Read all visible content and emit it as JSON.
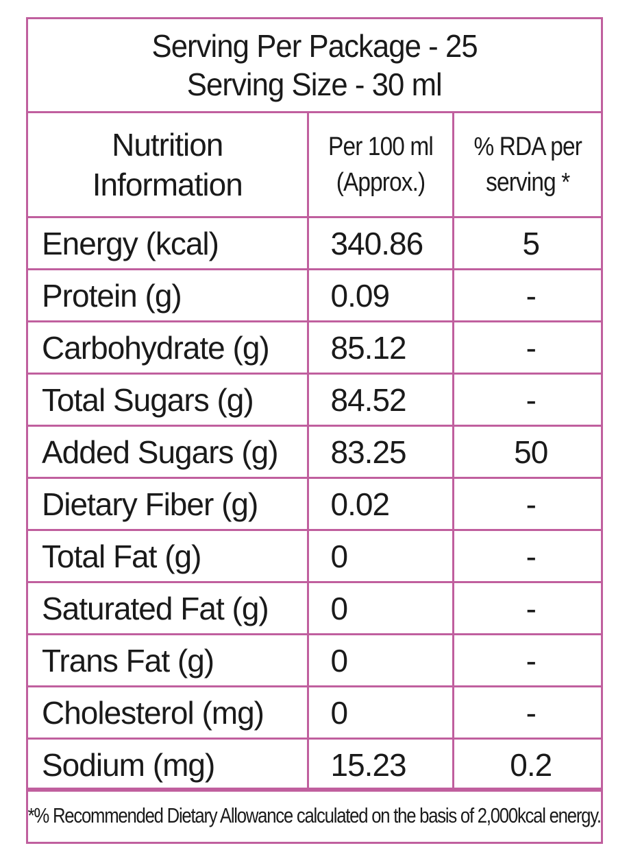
{
  "header": {
    "line1": "Serving Per Package - 25",
    "line2": "Serving Size - 30 ml"
  },
  "columns": {
    "nutrition_line1": "Nutrition",
    "nutrition_line2": "Information",
    "per100_line1": "Per 100 ml",
    "per100_line2": "(Approx.)",
    "rda_line1": "% RDA per",
    "rda_line2": "serving *"
  },
  "rows": [
    {
      "name": "Energy (kcal)",
      "value": "340.86",
      "rda": "5"
    },
    {
      "name": "Protein (g)",
      "value": "0.09",
      "rda": "-"
    },
    {
      "name": "Carbohydrate (g)",
      "value": "85.12",
      "rda": "-"
    },
    {
      "name": "Total Sugars (g)",
      "value": "84.52",
      "rda": "-"
    },
    {
      "name": "Added Sugars (g)",
      "value": "83.25",
      "rda": "50"
    },
    {
      "name": "Dietary Fiber (g)",
      "value": "0.02",
      "rda": "-"
    },
    {
      "name": "Total Fat (g)",
      "value": "0",
      "rda": "-"
    },
    {
      "name": "Saturated Fat (g)",
      "value": "0",
      "rda": "-"
    },
    {
      "name": "Trans Fat (g)",
      "value": "0",
      "rda": "-"
    },
    {
      "name": "Cholesterol (mg)",
      "value": "0",
      "rda": "-"
    },
    {
      "name": "Sodium (mg)",
      "value": "15.23",
      "rda": "0.2"
    }
  ],
  "footnote": "*% Recommended Dietary Allowance calculated on the basis of 2,000kcal energy.",
  "colors": {
    "border": "#c05f9e",
    "text": "#1a1a1a"
  }
}
